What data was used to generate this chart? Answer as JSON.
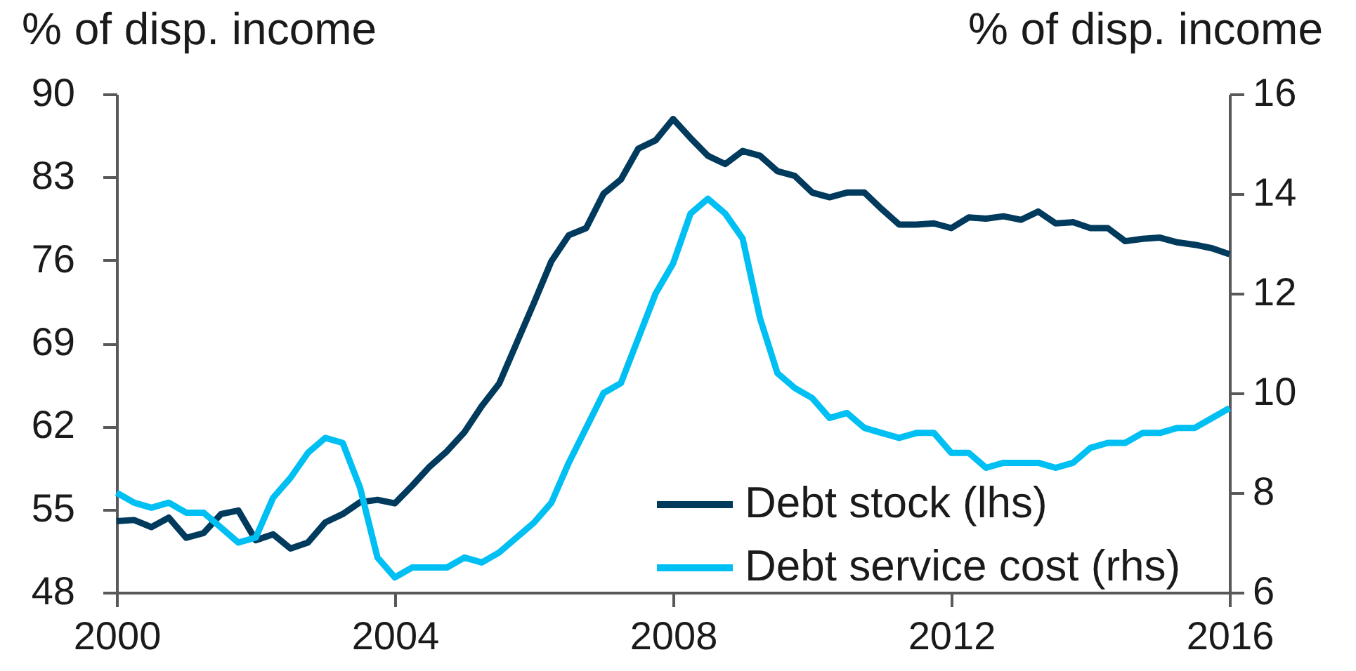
{
  "chart_data": {
    "type": "line",
    "ylabel": "% of disp. income",
    "y2label": "% of disp. income",
    "x": [
      2000,
      2000.25,
      2000.5,
      2000.75,
      2001,
      2001.25,
      2001.5,
      2001.75,
      2002,
      2002.25,
      2002.5,
      2002.75,
      2003,
      2003.25,
      2003.5,
      2003.75,
      2004,
      2004.25,
      2004.5,
      2004.75,
      2005,
      2005.25,
      2005.5,
      2005.75,
      2006,
      2006.25,
      2006.5,
      2006.75,
      2007,
      2007.25,
      2007.5,
      2007.75,
      2008,
      2008.25,
      2008.5,
      2008.75,
      2009,
      2009.25,
      2009.5,
      2009.75,
      2010,
      2010.25,
      2010.5,
      2010.75,
      2011,
      2011.25,
      2011.5,
      2011.75,
      2012,
      2012.25,
      2012.5,
      2012.75,
      2013,
      2013.25,
      2013.5,
      2013.75,
      2014,
      2014.25,
      2014.5,
      2014.75,
      2015,
      2015.25,
      2015.5,
      2015.75,
      2016
    ],
    "xlim": [
      2000,
      2016
    ],
    "xticks": [
      2000,
      2004,
      2008,
      2012,
      2016
    ],
    "ylim": [
      48,
      90
    ],
    "yticks": [
      48,
      55,
      62,
      69,
      76,
      83,
      90
    ],
    "y2lim": [
      6,
      16
    ],
    "y2ticks": [
      6,
      8,
      10,
      12,
      14,
      16
    ],
    "legend": "bottom right",
    "line_style": "solid",
    "series": [
      {
        "name": "Debt stock (lhs)",
        "color": "#003a5c",
        "values": [
          54.0,
          54.1,
          53.5,
          54.3,
          52.6,
          53.0,
          54.6,
          54.9,
          52.4,
          52.9,
          51.7,
          52.2,
          53.9,
          54.6,
          55.6,
          55.8,
          55.5,
          57.0,
          58.6,
          59.9,
          61.5,
          63.7,
          65.6,
          69.0,
          72.4,
          75.9,
          78.1,
          78.7,
          81.6,
          82.8,
          85.4,
          86.1,
          87.9,
          86.3,
          84.8,
          84.1,
          85.2,
          84.8,
          83.5,
          83.1,
          81.7,
          81.3,
          81.7,
          81.7,
          80.3,
          79.0,
          79.0,
          79.1,
          78.7,
          79.6,
          79.5,
          79.7,
          79.4,
          80.1,
          79.1,
          79.2,
          78.7,
          78.7,
          77.6,
          77.8,
          77.9,
          77.5,
          77.3,
          77.0,
          76.5
        ]
      },
      {
        "name": "Debt service cost (rhs)",
        "color": "#00bff3",
        "axis": "y2",
        "values": [
          8.0,
          7.8,
          7.7,
          7.8,
          7.6,
          7.6,
          7.3,
          7.0,
          7.1,
          7.9,
          8.3,
          8.8,
          9.1,
          9.0,
          8.1,
          6.7,
          6.3,
          6.5,
          6.5,
          6.5,
          6.7,
          6.6,
          6.8,
          7.1,
          7.4,
          7.8,
          8.6,
          9.3,
          10.0,
          10.2,
          11.1,
          12.0,
          12.6,
          13.6,
          13.9,
          13.6,
          13.1,
          11.5,
          10.4,
          10.1,
          9.9,
          9.5,
          9.6,
          9.3,
          9.2,
          9.1,
          9.2,
          9.2,
          8.8,
          8.8,
          8.5,
          8.6,
          8.6,
          8.6,
          8.5,
          8.6,
          8.9,
          9.0,
          9.0,
          9.2,
          9.2,
          9.3,
          9.3,
          9.5,
          9.7
        ]
      }
    ]
  }
}
